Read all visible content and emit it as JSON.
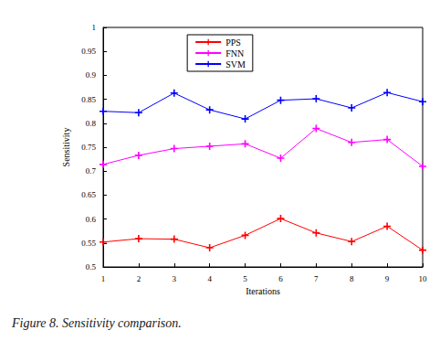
{
  "chart_data": {
    "type": "line",
    "title": "Figure 8. Sensitivity comparison.",
    "x_label": "Iterations",
    "y_label": "Sensitivity",
    "x": [
      1,
      2,
      3,
      4,
      5,
      6,
      7,
      8,
      9,
      10
    ],
    "series": [
      {
        "name": "PPS",
        "color": "#ff0000",
        "marker": "plus",
        "line_style": "solid",
        "values": [
          0.552,
          0.559,
          0.558,
          0.54,
          0.566,
          0.601,
          0.571,
          0.553,
          0.585,
          0.535
        ]
      },
      {
        "name": "FNN",
        "color": "#ff00ff",
        "marker": "plus",
        "line_style": "solid",
        "values": [
          0.714,
          0.733,
          0.747,
          0.752,
          0.757,
          0.727,
          0.789,
          0.76,
          0.766,
          0.71
        ]
      },
      {
        "name": "SVM",
        "color": "#0000ff",
        "marker": "plus",
        "line_style": "solid",
        "values": [
          0.825,
          0.822,
          0.863,
          0.828,
          0.809,
          0.848,
          0.851,
          0.832,
          0.864,
          0.845
        ]
      }
    ],
    "xlim": [
      1,
      10
    ],
    "xticks": [
      1,
      2,
      3,
      4,
      5,
      6,
      7,
      8,
      9,
      10
    ],
    "ylim": [
      0.5,
      1
    ],
    "yticks": [
      0.5,
      0.55,
      0.6,
      0.65,
      0.7,
      0.75,
      0.8,
      0.85,
      0.9,
      0.95,
      1
    ],
    "grid": false,
    "legend": "top"
  }
}
